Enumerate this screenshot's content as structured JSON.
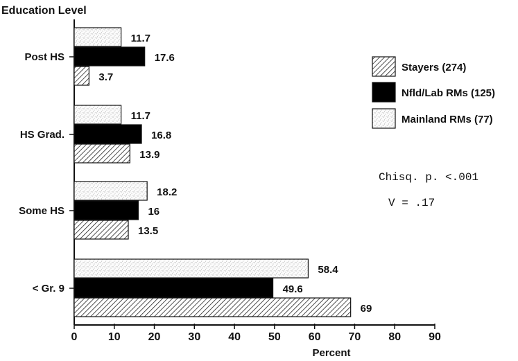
{
  "chart_data": {
    "type": "bar",
    "orientation": "horizontal",
    "ylabel": "Education Level",
    "xlabel": "Percent",
    "xlim": [
      0,
      90
    ],
    "xticks": [
      0,
      10,
      20,
      30,
      40,
      50,
      60,
      70,
      80,
      90
    ],
    "categories": [
      "Post HS",
      "HS Grad.",
      "Some HS",
      "< Gr. 9"
    ],
    "series": [
      {
        "name": "Mainland RMs (77)",
        "values": [
          11.7,
          11.7,
          18.2,
          58.4
        ],
        "value_labels": [
          "11.7",
          "11.7",
          "18.2",
          "58.4"
        ],
        "pattern": "stipple"
      },
      {
        "name": "Nfld/Lab RMs (125)",
        "values": [
          17.6,
          16.8,
          16,
          49.6
        ],
        "value_labels": [
          "17.6",
          "16.8",
          "16",
          "49.6"
        ],
        "pattern": "solid"
      },
      {
        "name": "Stayers (274)",
        "values": [
          3.7,
          13.9,
          13.5,
          69
        ],
        "value_labels": [
          "3.7",
          "13.9",
          "13.5",
          "69"
        ],
        "pattern": "hatch"
      }
    ],
    "legend_order": [
      "Stayers (274)",
      "Nfld/Lab RMs (125)",
      "Mainland RMs (77)"
    ],
    "legend_position": "right",
    "annotations": [
      "Chisq. p. <.001",
      "V = .17"
    ],
    "grid": false
  }
}
